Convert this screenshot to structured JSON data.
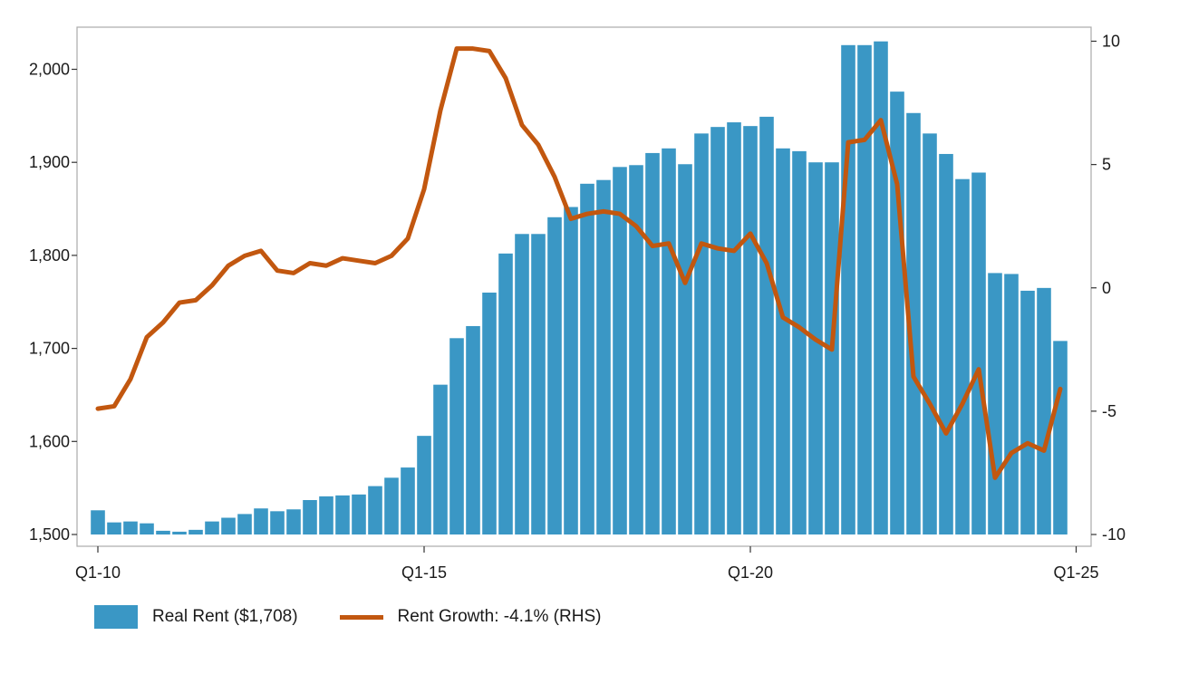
{
  "chart_data": {
    "type": "bar+line",
    "x_tick_labels": [
      "Q1-10",
      "Q1-15",
      "Q1-20",
      "Q1-25"
    ],
    "left_axis": {
      "ylim": [
        1500,
        2050
      ],
      "ticks": [
        1500,
        1600,
        1700,
        1800,
        1900,
        2000
      ],
      "tick_labels": [
        "1,500",
        "1,600",
        "1,700",
        "1,800",
        "1,900",
        "2,000"
      ]
    },
    "right_axis": {
      "ylim": [
        -10.5,
        10.5
      ],
      "ticks": [
        -10,
        -5,
        0,
        5,
        10
      ],
      "tick_labels": [
        "-10",
        "-5",
        "0",
        "5",
        "10"
      ]
    },
    "colors": {
      "bar": "#3a97c5",
      "line": "#c2570f",
      "frame": "#aaaaaa"
    },
    "series": [
      {
        "name": "Real Rent ($1,708)",
        "type": "bar",
        "axis": "left",
        "values": [
          1526,
          1513,
          1514,
          1512,
          1504,
          1503,
          1505,
          1514,
          1518,
          1522,
          1528,
          1525,
          1527,
          1537,
          1541,
          1542,
          1543,
          1552,
          1561,
          1572,
          1606,
          1661,
          1711,
          1724,
          1760,
          1802,
          1823,
          1823,
          1841,
          1852,
          1877,
          1881,
          1895,
          1897,
          1910,
          1915,
          1898,
          1931,
          1938,
          1943,
          1939,
          1949,
          1915,
          1912,
          1900,
          1900,
          2026,
          2026,
          2030,
          1976,
          1953,
          1931,
          1909,
          1882,
          1889,
          1781,
          1780,
          1762,
          1765,
          1708
        ]
      },
      {
        "name": "Rent Growth: -4.1% (RHS)",
        "type": "line",
        "axis": "right",
        "values": [
          -4.9,
          -4.8,
          -3.7,
          -2.0,
          -1.4,
          -0.6,
          -0.5,
          0.1,
          0.9,
          1.3,
          1.5,
          0.7,
          0.6,
          1.0,
          0.9,
          1.2,
          1.1,
          1.0,
          1.3,
          2.0,
          4.0,
          7.2,
          9.7,
          9.7,
          9.6,
          8.5,
          6.6,
          5.8,
          4.5,
          2.8,
          3.0,
          3.1,
          3.0,
          2.5,
          1.7,
          1.8,
          0.2,
          1.8,
          1.6,
          1.5,
          2.2,
          1.0,
          -1.2,
          -1.6,
          -2.1,
          -2.5,
          5.9,
          6.0,
          6.8,
          4.2,
          -3.6,
          -4.7,
          -5.9,
          -4.7,
          -3.3,
          -7.7,
          -6.7,
          -6.3,
          -6.6,
          -4.1
        ]
      }
    ]
  }
}
